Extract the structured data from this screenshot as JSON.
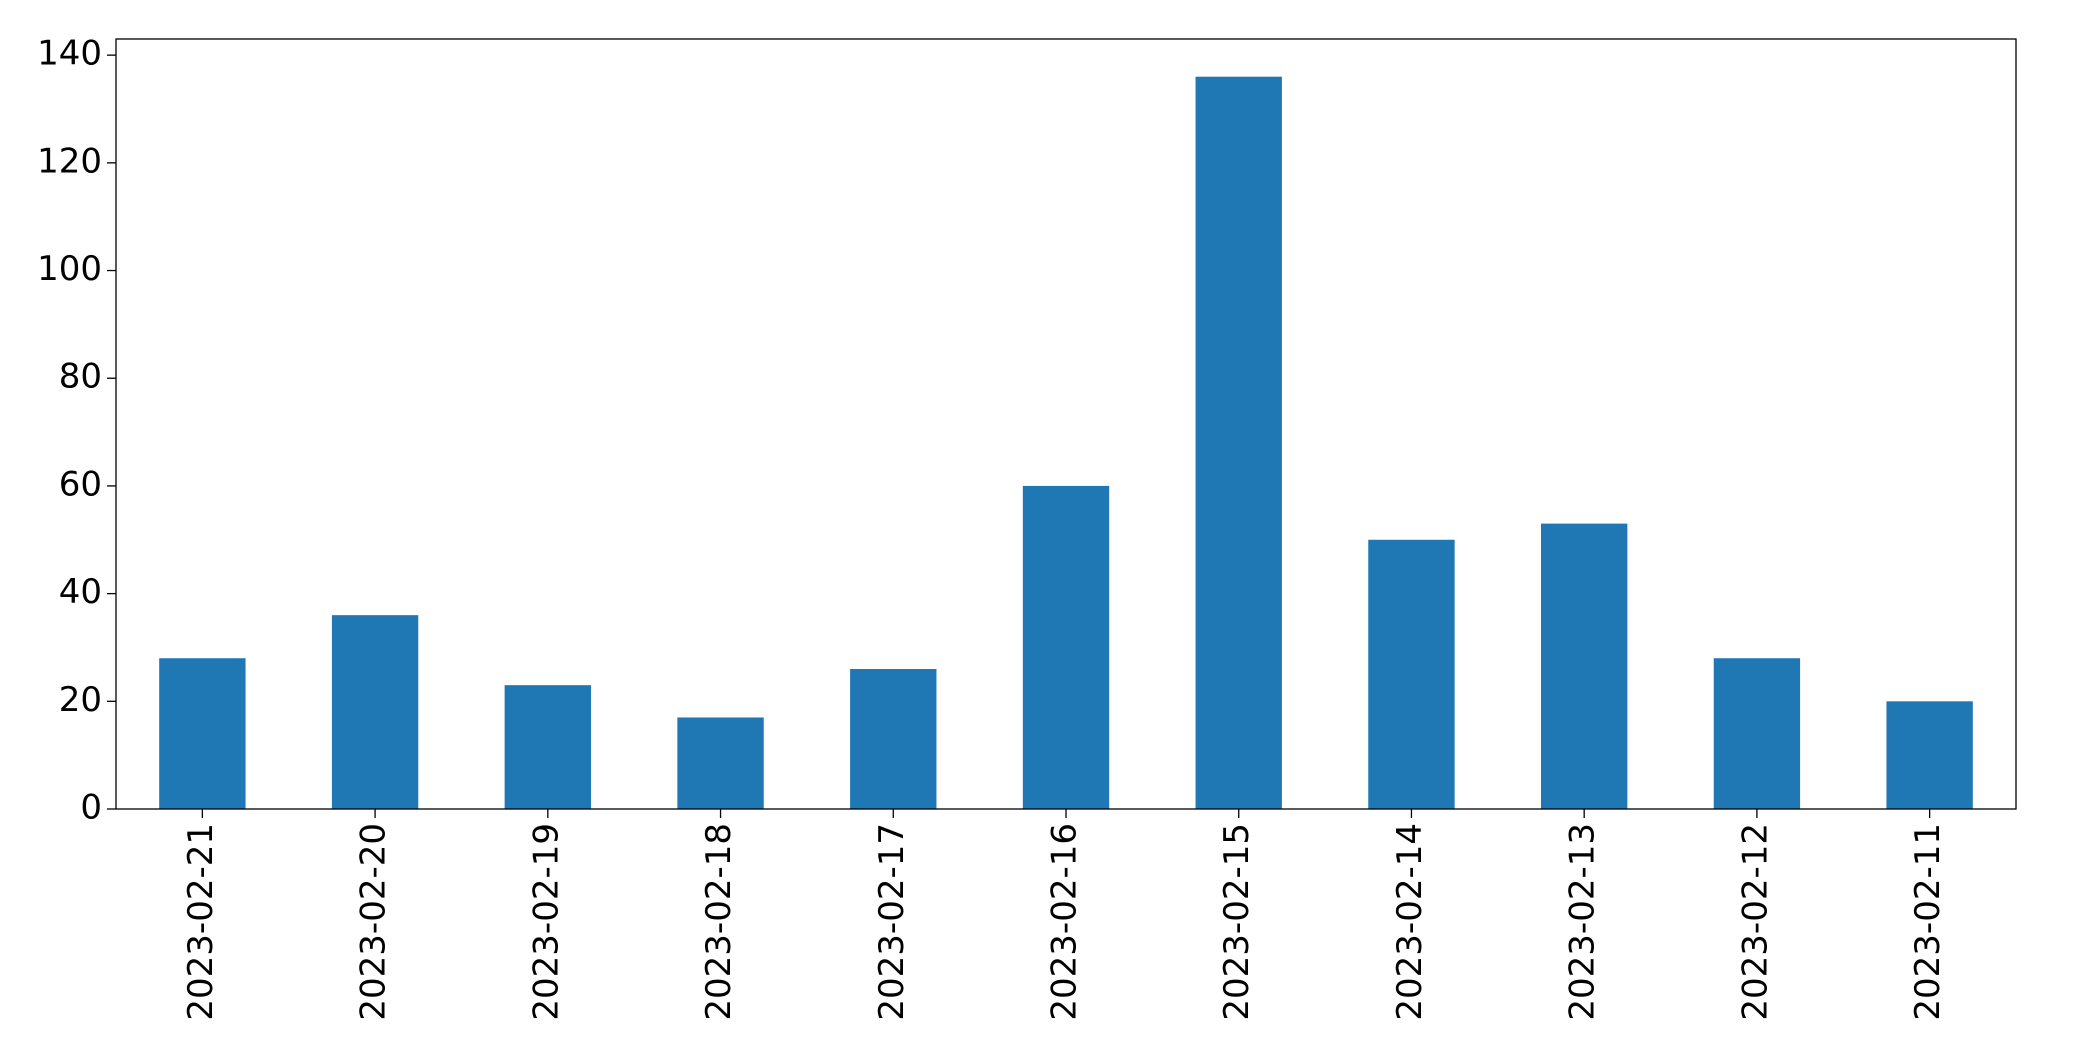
{
  "chart_data": {
    "type": "bar",
    "categories": [
      "2023-02-21",
      "2023-02-20",
      "2023-02-19",
      "2023-02-18",
      "2023-02-17",
      "2023-02-16",
      "2023-02-15",
      "2023-02-14",
      "2023-02-13",
      "2023-02-12",
      "2023-02-11"
    ],
    "values": [
      28,
      36,
      23,
      17,
      26,
      60,
      136,
      50,
      53,
      28,
      20
    ],
    "color": "#1f77b4",
    "ylim": [
      0,
      143
    ],
    "yticks": [
      0,
      20,
      40,
      60,
      80,
      100,
      120,
      140
    ],
    "grid": false
  }
}
